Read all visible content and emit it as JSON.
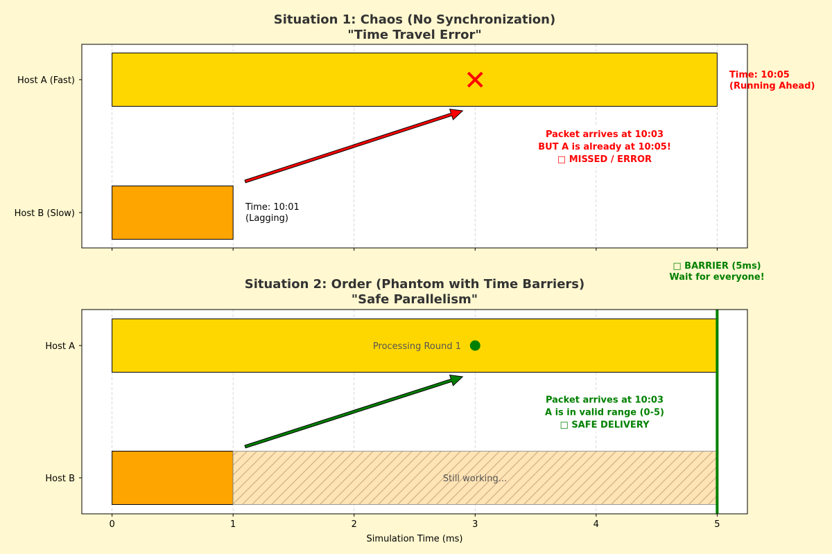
{
  "chart_data": [
    {
      "type": "bar",
      "orientation": "horizontal-timeline",
      "title": "Situation 1: Chaos (No Synchronization)\n\"Time Travel Error\"",
      "title_lines": [
        "Situation 1: Chaos (No Synchronization)",
        "\"Time Travel Error\""
      ],
      "categories": [
        "Host A (Fast)",
        "Host B (Slow)"
      ],
      "bars": [
        {
          "host": "Host A (Fast)",
          "start": 0,
          "end": 5,
          "color": "#ffd700"
        },
        {
          "host": "Host B (Slow)",
          "start": 0,
          "end": 1,
          "color": "#ffa500"
        }
      ],
      "xlim": [
        -0.25,
        5.25
      ],
      "xticks": [
        0,
        1,
        2,
        3,
        4,
        5
      ],
      "grid": "x dashed",
      "arrow": {
        "from": [
          1.1,
          "Host B (Slow)"
        ],
        "to": [
          3,
          "Host A (Fast)"
        ],
        "color": "#ff0000"
      },
      "marker": {
        "x": 3,
        "host": "Host A (Fast)",
        "symbol": "x",
        "color": "#ff0000"
      },
      "annotations": {
        "host_a": [
          "Time: 10:05",
          "(Running Ahead)"
        ],
        "host_b": [
          "Time: 10:01",
          "(Lagging)"
        ],
        "packet": [
          "Packet arrives at 10:03",
          "BUT A is already at 10:05!",
          "□ MISSED / ERROR"
        ]
      }
    },
    {
      "type": "bar",
      "orientation": "horizontal-timeline",
      "title_lines": [
        "Situation 2: Order (Phantom with Time Barriers)",
        "\"Safe Parallelism\""
      ],
      "categories": [
        "Host A",
        "Host B"
      ],
      "bars": [
        {
          "host": "Host A",
          "start": 0,
          "end": 5,
          "color": "#ffd700",
          "label": "Processing Round 1"
        },
        {
          "host": "Host B",
          "start": 0,
          "end": 1,
          "color": "#ffa500"
        },
        {
          "host": "Host B",
          "start": 1,
          "end": 5,
          "color": "#ffe4b5",
          "hatch": "/",
          "label": "Still working..."
        }
      ],
      "xlim": [
        -0.25,
        5.25
      ],
      "xticks": [
        0,
        1,
        2,
        3,
        4,
        5
      ],
      "xlabel": "Simulation Time (ms)",
      "grid": "x dashed",
      "arrow": {
        "from": [
          1.1,
          "Host B"
        ],
        "to": [
          3,
          "Host A"
        ],
        "color": "#008000"
      },
      "marker": {
        "x": 3,
        "host": "Host A",
        "symbol": "o",
        "color": "#008000"
      },
      "barrier": {
        "x": 5,
        "color": "#008000",
        "label": [
          "□ BARRIER (5ms)",
          "Wait for everyone!"
        ]
      },
      "annotations": {
        "packet": [
          "Packet arrives at 10:03",
          "A is in valid range (0-5)",
          "□ SAFE DELIVERY"
        ]
      }
    }
  ]
}
